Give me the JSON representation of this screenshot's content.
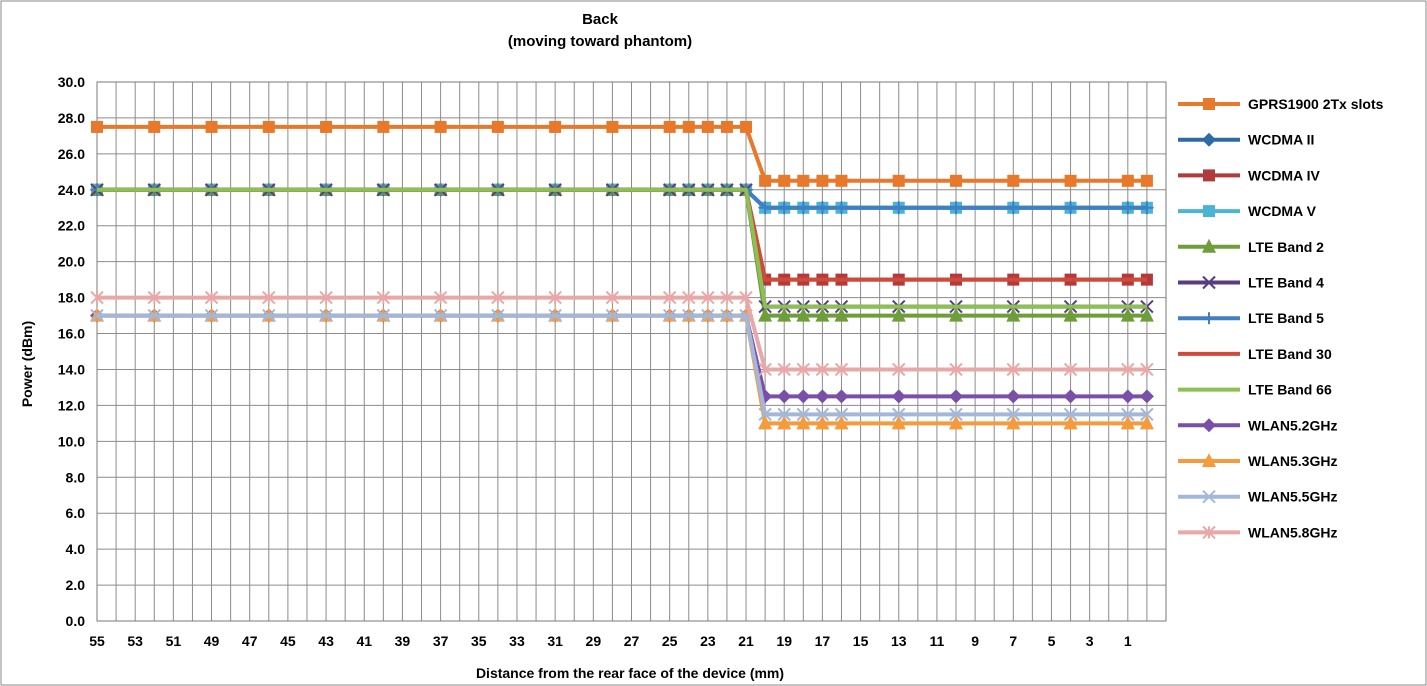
{
  "chart_data": {
    "type": "line",
    "title": "Back",
    "subtitle": "(moving toward phantom)",
    "xlabel": "Distance from the rear face of the device (mm)",
    "ylabel": "Power (dBm)",
    "xlim": [
      55,
      -1
    ],
    "ylim": [
      0,
      30
    ],
    "x_reversed": true,
    "grid": true,
    "legend_position": "right",
    "x_ticks": [
      "55",
      "53",
      "51",
      "49",
      "47",
      "45",
      "43",
      "41",
      "39",
      "37",
      "35",
      "33",
      "31",
      "29",
      "27",
      "25",
      "23",
      "21",
      "19",
      "17",
      "15",
      "13",
      "11",
      "9",
      "7",
      "5",
      "3",
      "1"
    ],
    "y_ticks": [
      "0.0",
      "2.0",
      "4.0",
      "6.0",
      "8.0",
      "10.0",
      "12.0",
      "14.0",
      "16.0",
      "18.0",
      "20.0",
      "22.0",
      "24.0",
      "26.0",
      "28.0",
      "30.0"
    ],
    "x": [
      55,
      52,
      49,
      46,
      43,
      40,
      37,
      34,
      31,
      28,
      25,
      24,
      23,
      22,
      21,
      20,
      19,
      18,
      17,
      16,
      13,
      10,
      7,
      4,
      1,
      0
    ],
    "series": [
      {
        "name": "GPRS1900 2Tx slots",
        "color": "#E8782A",
        "marker": "square",
        "before": 27.5,
        "after": 24.5
      },
      {
        "name": "WCDMA II",
        "color": "#2E6AA6",
        "marker": "diamond",
        "before": 24,
        "after": 23
      },
      {
        "name": "WCDMA IV",
        "color": "#B23A3A",
        "marker": "square",
        "before": 24,
        "after": 19
      },
      {
        "name": "WCDMA V",
        "color": "#4BB3D6",
        "marker": "square",
        "before": 24,
        "after": 23
      },
      {
        "name": "LTE Band 2",
        "color": "#6E9E3A",
        "marker": "triangle",
        "before": 24,
        "after": 17
      },
      {
        "name": "LTE Band 4",
        "color": "#5A3C80",
        "marker": "x",
        "before": 24,
        "after": 17.5
      },
      {
        "name": "LTE Band 5",
        "color": "#3F7FC4",
        "marker": "plus",
        "before": 24,
        "after": 23
      },
      {
        "name": "LTE Band 30",
        "color": "#D04A3A",
        "marker": "none",
        "before": 24,
        "after": 19
      },
      {
        "name": "LTE Band 66",
        "color": "#8CC152",
        "marker": "none",
        "before": 24,
        "after": 17.5
      },
      {
        "name": "WLAN5.2GHz",
        "color": "#7A4FA8",
        "marker": "diamond",
        "before": 17,
        "after": 12.5
      },
      {
        "name": "WLAN5.3GHz",
        "color": "#F79A3C",
        "marker": "triangle",
        "before": 17,
        "after": 11
      },
      {
        "name": "WLAN5.5GHz",
        "color": "#A3B8D9",
        "marker": "x",
        "before": 17,
        "after": 11.5
      },
      {
        "name": "WLAN5.8GHz",
        "color": "#E8A8A8",
        "marker": "asterisk",
        "before": 18,
        "after": 14
      }
    ]
  }
}
